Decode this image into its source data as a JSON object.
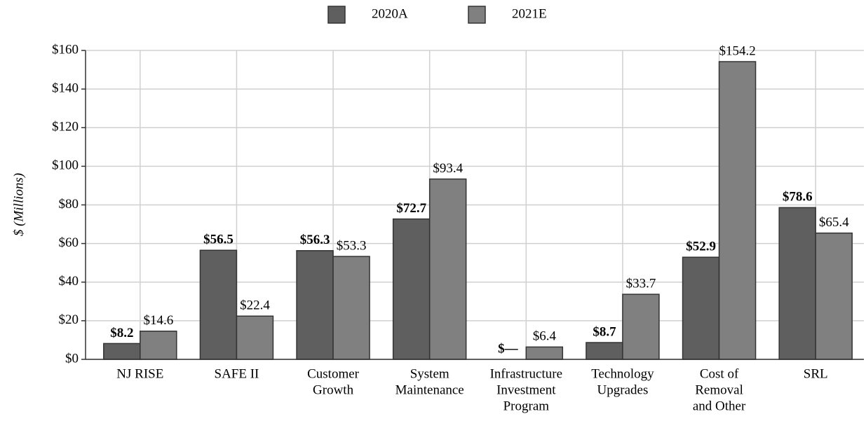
{
  "chart_data": {
    "type": "bar",
    "y_label": "$ (Millions)",
    "categories": [
      [
        "NJ RISE"
      ],
      [
        "SAFE II"
      ],
      [
        "Customer",
        "Growth"
      ],
      [
        "System",
        "Maintenance"
      ],
      [
        "Infrastructure",
        "Investment",
        "Program"
      ],
      [
        "Technology",
        "Upgrades"
      ],
      [
        "Cost of",
        "Removal",
        "and Other"
      ],
      [
        "SRL"
      ]
    ],
    "series": [
      {
        "name": "2020A",
        "color": "#5f5f5f",
        "values": [
          8.2,
          56.5,
          56.3,
          72.7,
          0,
          8.7,
          52.9,
          78.6
        ],
        "value_labels": [
          "$8.2",
          "$56.5",
          "$56.3",
          "$72.7",
          "$—",
          "$8.7",
          "$52.9",
          "$78.6"
        ]
      },
      {
        "name": "2021E",
        "color": "#808080",
        "values": [
          14.6,
          22.4,
          53.3,
          93.4,
          6.4,
          33.7,
          154.2,
          65.4
        ],
        "value_labels": [
          "$14.6",
          "$22.4",
          "$53.3",
          "$93.4",
          "$6.4",
          "$33.7",
          "$154.2",
          "$65.4"
        ]
      }
    ],
    "ylim": [
      0,
      160
    ],
    "yticks": [
      {
        "value": 0,
        "label": "$0"
      },
      {
        "value": 20,
        "label": "$20"
      },
      {
        "value": 40,
        "label": "$40"
      },
      {
        "value": 60,
        "label": "$60"
      },
      {
        "value": 80,
        "label": "$80"
      },
      {
        "value": 100,
        "label": "$100"
      },
      {
        "value": 120,
        "label": "$120"
      },
      {
        "value": 140,
        "label": "$140"
      },
      {
        "value": 160,
        "label": "$160"
      }
    ],
    "grid": true,
    "legend": "top"
  }
}
